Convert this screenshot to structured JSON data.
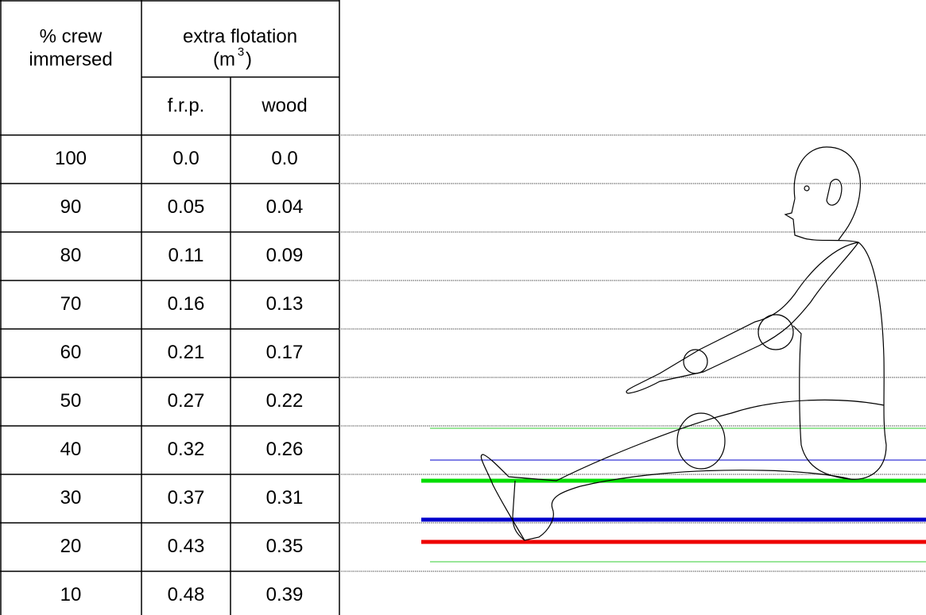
{
  "table": {
    "header": {
      "crew": [
        "% crew",
        "immersed"
      ],
      "flotation": "extra flotation",
      "unit_open": "(m",
      "unit_exp": "3",
      "unit_close": ")",
      "frp": "f.r.p.",
      "wood": "wood"
    },
    "rows": [
      [
        "100",
        "0.0",
        "0.0"
      ],
      [
        "90",
        "0.05",
        "0.04"
      ],
      [
        "80",
        "0.11",
        "0.09"
      ],
      [
        "70",
        "0.16",
        "0.13"
      ],
      [
        "60",
        "0.21",
        "0.17"
      ],
      [
        "50",
        "0.27",
        "0.22"
      ],
      [
        "40",
        "0.32",
        "0.26"
      ],
      [
        "30",
        "0.37",
        "0.31"
      ],
      [
        "20",
        "0.43",
        "0.35"
      ],
      [
        "10",
        "0.48",
        "0.39"
      ]
    ]
  }
}
